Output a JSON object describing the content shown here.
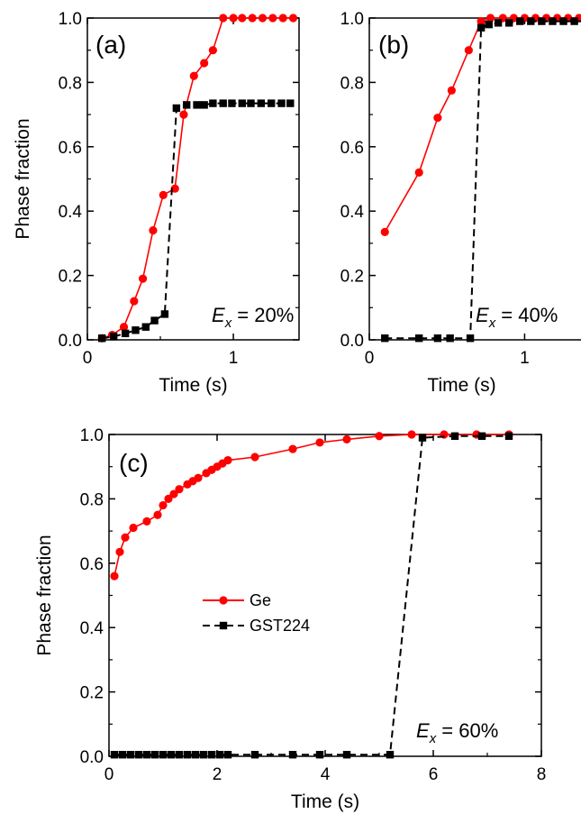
{
  "colors": {
    "ge": "#ff0000",
    "gst": "#000000",
    "axis": "#000000"
  },
  "chart_data": [
    {
      "panel_label": "(a)",
      "type": "line",
      "xlabel": "Time (s)",
      "ylabel": "Phase fraction",
      "xlim": [
        0,
        1.45
      ],
      "ylim": [
        0,
        1.0
      ],
      "xticks": [
        {
          "v": 0,
          "label": "0"
        },
        {
          "v": 1,
          "label": "1"
        }
      ],
      "yticks": [
        {
          "v": 0,
          "label": "0.0"
        },
        {
          "v": 0.2,
          "label": "0.2"
        },
        {
          "v": 0.4,
          "label": "0.4"
        },
        {
          "v": 0.6,
          "label": "0.6"
        },
        {
          "v": 0.8,
          "label": "0.8"
        },
        {
          "v": 1.0,
          "label": "1.0"
        }
      ],
      "annotation": {
        "symbol": "E",
        "subscript": "x",
        "text": " = 20%"
      },
      "series": [
        {
          "key": "ge",
          "marker": "circle",
          "style": "solid",
          "x": [
            0.1,
            0.17,
            0.25,
            0.32,
            0.38,
            0.45,
            0.52,
            0.6,
            0.66,
            0.73,
            0.8,
            0.86,
            0.93,
            1.0,
            1.06,
            1.13,
            1.2,
            1.27,
            1.34,
            1.41
          ],
          "y": [
            0.005,
            0.015,
            0.04,
            0.12,
            0.19,
            0.34,
            0.45,
            0.47,
            0.7,
            0.82,
            0.86,
            0.9,
            1.0,
            1.0,
            1.0,
            1.0,
            1.0,
            1.0,
            1.0,
            1.0
          ]
        },
        {
          "key": "gst",
          "marker": "square",
          "style": "dashed",
          "x": [
            0.1,
            0.18,
            0.26,
            0.33,
            0.4,
            0.46,
            0.53,
            0.61,
            0.68,
            0.75,
            0.8,
            0.86,
            0.93,
            0.99,
            1.06,
            1.12,
            1.19,
            1.26,
            1.33,
            1.39
          ],
          "y": [
            0.005,
            0.01,
            0.02,
            0.03,
            0.04,
            0.06,
            0.08,
            0.72,
            0.73,
            0.73,
            0.73,
            0.735,
            0.735,
            0.735,
            0.735,
            0.735,
            0.735,
            0.735,
            0.735,
            0.735
          ]
        }
      ]
    },
    {
      "panel_label": "(b)",
      "type": "line",
      "xlabel": "Time (s)",
      "ylabel": "",
      "xlim": [
        0,
        1.45
      ],
      "ylim": [
        0,
        1.0
      ],
      "xticks": [
        {
          "v": 0,
          "label": "0"
        },
        {
          "v": 1,
          "label": "1"
        }
      ],
      "yticks": [
        {
          "v": 0,
          "label": "0.0"
        },
        {
          "v": 0.2,
          "label": "0.2"
        },
        {
          "v": 0.4,
          "label": "0.4"
        },
        {
          "v": 0.6,
          "label": "0.6"
        },
        {
          "v": 0.8,
          "label": "0.8"
        },
        {
          "v": 1.0,
          "label": "1.0"
        }
      ],
      "annotation": {
        "symbol": "E",
        "subscript": "x",
        "text": " = 40%"
      },
      "series": [
        {
          "key": "ge",
          "marker": "circle",
          "style": "solid",
          "x": [
            0.1,
            0.32,
            0.44,
            0.53,
            0.64,
            0.72,
            0.78,
            0.86,
            0.93,
            1.0,
            1.07,
            1.14,
            1.21,
            1.28,
            1.35,
            1.42
          ],
          "y": [
            0.335,
            0.52,
            0.69,
            0.775,
            0.9,
            0.99,
            1.0,
            1.0,
            1.0,
            1.0,
            1.0,
            1.0,
            1.0,
            1.0,
            1.0,
            1.0
          ]
        },
        {
          "key": "gst",
          "marker": "square",
          "style": "dashed",
          "x": [
            0.1,
            0.32,
            0.44,
            0.52,
            0.65,
            0.72,
            0.77,
            0.83,
            0.9,
            0.97,
            1.04,
            1.11,
            1.18,
            1.25,
            1.32,
            1.39
          ],
          "y": [
            0.005,
            0.005,
            0.005,
            0.005,
            0.005,
            0.97,
            0.98,
            0.985,
            0.985,
            0.99,
            0.99,
            0.99,
            0.99,
            0.99,
            0.99,
            0.99
          ]
        }
      ]
    },
    {
      "panel_label": "(c)",
      "type": "line",
      "xlabel": "Time (s)",
      "ylabel": "Phase fraction",
      "xlim": [
        0,
        8
      ],
      "ylim": [
        0,
        1.0
      ],
      "xticks": [
        {
          "v": 0,
          "label": "0"
        },
        {
          "v": 2,
          "label": "2"
        },
        {
          "v": 4,
          "label": "4"
        },
        {
          "v": 6,
          "label": "6"
        },
        {
          "v": 8,
          "label": "8"
        }
      ],
      "yticks": [
        {
          "v": 0,
          "label": "0.0"
        },
        {
          "v": 0.2,
          "label": "0.2"
        },
        {
          "v": 0.4,
          "label": "0.4"
        },
        {
          "v": 0.6,
          "label": "0.6"
        },
        {
          "v": 0.8,
          "label": "0.8"
        },
        {
          "v": 1.0,
          "label": "1.0"
        }
      ],
      "annotation": {
        "symbol": "E",
        "subscript": "x",
        "text": " = 60%"
      },
      "legend": [
        {
          "key": "ge",
          "label": "Ge",
          "marker": "circle",
          "style": "solid"
        },
        {
          "key": "gst",
          "label": "GST224",
          "marker": "square",
          "style": "dashed"
        }
      ],
      "series": [
        {
          "key": "ge",
          "name": "Ge",
          "marker": "circle",
          "style": "solid",
          "x": [
            0.1,
            0.2,
            0.3,
            0.45,
            0.7,
            0.9,
            1.0,
            1.1,
            1.2,
            1.3,
            1.45,
            1.55,
            1.65,
            1.8,
            1.9,
            2.0,
            2.1,
            2.2,
            2.7,
            3.4,
            3.9,
            4.4,
            5.0,
            5.6,
            6.2,
            6.8,
            7.4
          ],
          "y": [
            0.56,
            0.635,
            0.68,
            0.71,
            0.73,
            0.75,
            0.78,
            0.8,
            0.815,
            0.83,
            0.845,
            0.855,
            0.865,
            0.88,
            0.89,
            0.9,
            0.91,
            0.92,
            0.93,
            0.955,
            0.975,
            0.985,
            0.995,
            1.0,
            1.0,
            1.0,
            1.0
          ]
        },
        {
          "key": "gst",
          "name": "GST224",
          "marker": "square",
          "style": "dashed",
          "x": [
            0.1,
            0.25,
            0.4,
            0.55,
            0.7,
            0.85,
            1.0,
            1.15,
            1.3,
            1.45,
            1.6,
            1.75,
            1.9,
            2.05,
            2.2,
            2.7,
            3.4,
            3.9,
            4.4,
            5.2,
            5.8,
            6.4,
            6.9,
            7.4
          ],
          "y": [
            0.005,
            0.005,
            0.005,
            0.005,
            0.005,
            0.005,
            0.005,
            0.005,
            0.005,
            0.005,
            0.005,
            0.005,
            0.005,
            0.005,
            0.005,
            0.005,
            0.005,
            0.005,
            0.005,
            0.005,
            0.99,
            0.995,
            0.995,
            0.995
          ]
        }
      ]
    }
  ]
}
